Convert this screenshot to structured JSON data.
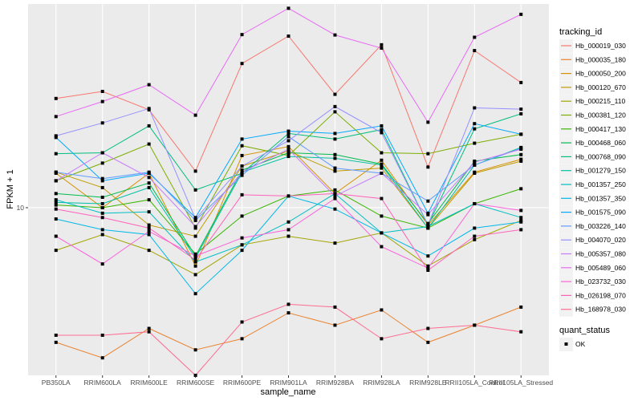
{
  "chart_data": {
    "type": "line",
    "title": "",
    "xlabel": "sample_name",
    "ylabel": "FPKM + 1",
    "y_scale": "log10",
    "y_ticks": [
      10
    ],
    "y_tick_labels": [
      "10"
    ],
    "ylim": [
      2.9,
      45
    ],
    "grid": true,
    "legend_position": "right",
    "categories": [
      "PB350LA",
      "RRIM600LA",
      "RRIM600LE",
      "RRIM600SE",
      "RRIM600PE",
      "RRIM901LA",
      "RRIM928BA",
      "RRIM928LA",
      "RRIM928LE",
      "RRII105LA_Control",
      "RRII105LA_Stressed"
    ],
    "legend": {
      "color_title": "tracking_id",
      "shape_title": "quant_status",
      "shape_entries": [
        "OK"
      ]
    },
    "series": [
      {
        "name": "Hb_000019_030",
        "color": "#F8766D",
        "values": [
          22.4,
          23.6,
          20.6,
          13.1,
          29.0,
          35.5,
          23.1,
          33.3,
          13.5,
          31.9,
          25.2
        ]
      },
      {
        "name": "Hb_000035_180",
        "color": "#EA8331",
        "values": [
          3.7,
          3.3,
          4.1,
          3.5,
          3.8,
          4.6,
          4.2,
          4.7,
          3.7,
          4.2,
          4.8
        ]
      },
      {
        "name": "Hb_000050_200",
        "color": "#D89000",
        "values": [
          12.9,
          10.0,
          12.9,
          6.5,
          14.7,
          15.7,
          11.1,
          14.2,
          8.8,
          13.0,
          14.3
        ]
      },
      {
        "name": "Hb_000120_670",
        "color": "#C09B00",
        "values": [
          13.0,
          11.6,
          8.8,
          8.1,
          13.6,
          15.2,
          13.1,
          13.4,
          8.6,
          12.9,
          14.1
        ]
      },
      {
        "name": "Hb_000215_110",
        "color": "#A3A500",
        "values": [
          7.3,
          8.2,
          7.3,
          6.1,
          7.6,
          8.1,
          7.7,
          8.3,
          6.5,
          7.9,
          9.1
        ]
      },
      {
        "name": "Hb_000381_120",
        "color": "#7CAE00",
        "values": [
          12.2,
          13.9,
          16.0,
          8.6,
          15.8,
          14.7,
          20.3,
          15.0,
          14.9,
          16.1,
          17.2
        ]
      },
      {
        "name": "Hb_000417_130",
        "color": "#39B600",
        "values": [
          10.2,
          10.0,
          10.6,
          7.1,
          9.4,
          10.9,
          11.4,
          9.4,
          8.6,
          10.3,
          11.5
        ]
      },
      {
        "name": "Hb_000468_060",
        "color": "#00BB4E",
        "values": [
          11.1,
          10.8,
          12.0,
          7.0,
          13.2,
          15.0,
          14.8,
          13.8,
          8.9,
          14.1,
          14.8
        ]
      },
      {
        "name": "Hb_000768_090",
        "color": "#00BF7D",
        "values": [
          14.9,
          15.0,
          18.3,
          11.4,
          12.9,
          17.3,
          16.6,
          17.8,
          8.8,
          17.9,
          20.0
        ]
      },
      {
        "name": "Hb_001279_150",
        "color": "#00C1A3",
        "values": [
          10.4,
          10.3,
          11.6,
          6.9,
          13.0,
          14.6,
          14.4,
          13.7,
          8.6,
          13.7,
          15.6
        ]
      },
      {
        "name": "Hb_001357_250",
        "color": "#00BFC4",
        "values": [
          10.6,
          9.6,
          9.7,
          6.7,
          7.6,
          9.0,
          11.1,
          8.3,
          8.7,
          10.3,
          9.3
        ]
      },
      {
        "name": "Hb_001357_350",
        "color": "#00B8E7",
        "values": [
          9.2,
          8.5,
          8.2,
          5.3,
          7.3,
          10.9,
          9.9,
          8.3,
          7.0,
          8.6,
          9.0
        ]
      },
      {
        "name": "Hb_001575_090",
        "color": "#00A9FF",
        "values": [
          16.8,
          12.2,
          12.9,
          9.3,
          16.6,
          17.6,
          17.3,
          18.3,
          9.6,
          18.6,
          17.2
        ]
      },
      {
        "name": "Hb_003226_140",
        "color": "#619CFF",
        "values": [
          13.0,
          12.4,
          13.0,
          9.1,
          12.7,
          16.9,
          13.4,
          12.9,
          10.5,
          13.7,
          15.5
        ]
      },
      {
        "name": "Hb_004070_020",
        "color": "#9590FF",
        "values": [
          17.0,
          18.7,
          20.8,
          9.2,
          13.6,
          16.4,
          21.1,
          17.4,
          8.8,
          20.9,
          20.7
        ]
      },
      {
        "name": "Hb_005357_080",
        "color": "#C77CFF",
        "values": [
          12.2,
          15.0,
          12.5,
          8.7,
          13.0,
          15.4,
          10.9,
          12.9,
          9.5,
          14.0,
          15.4
        ]
      },
      {
        "name": "Hb_005489_060",
        "color": "#E76BF3",
        "values": [
          19.6,
          21.9,
          24.8,
          19.8,
          35.9,
          43.6,
          35.8,
          32.5,
          18.8,
          35.2,
          41.7
        ]
      },
      {
        "name": "Hb_023732_030",
        "color": "#FA62DB",
        "values": [
          8.1,
          6.6,
          8.4,
          7.0,
          8.0,
          8.5,
          10.7,
          7.5,
          6.4,
          10.3,
          9.8
        ]
      },
      {
        "name": "Hb_026198_070",
        "color": "#FF62BC",
        "values": [
          9.9,
          9.3,
          8.6,
          6.8,
          11.0,
          10.9,
          11.1,
          10.7,
          6.3,
          8.1,
          8.5
        ]
      },
      {
        "name": "Hb_168978_030",
        "color": "#FF6C91",
        "values": [
          3.9,
          3.9,
          4.0,
          2.9,
          4.3,
          4.9,
          4.8,
          3.8,
          4.1,
          4.2,
          4.0
        ]
      }
    ]
  }
}
